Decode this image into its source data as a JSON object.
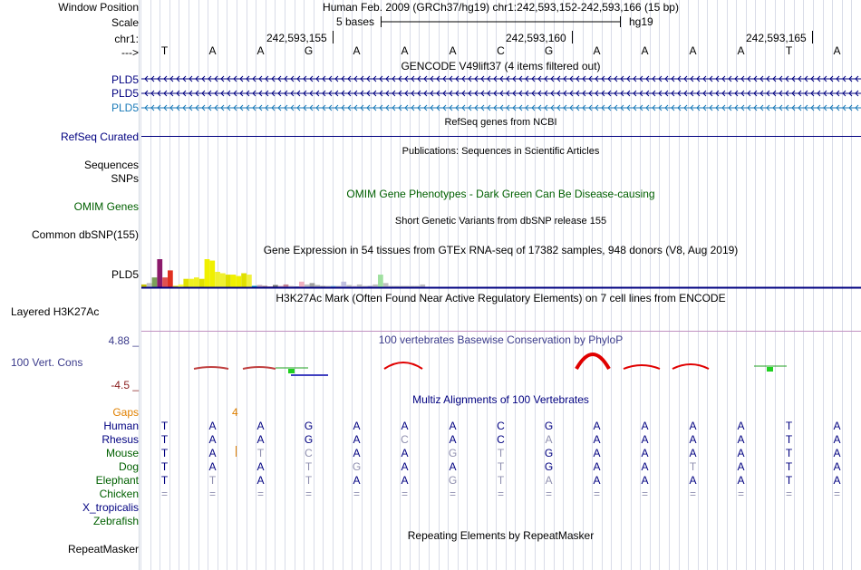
{
  "header": {
    "window_position_label": "Window Position",
    "window_position_value": "Human Feb. 2009 (GRCh37/hg19)   chr1:242,593,152-242,593,166 (15 bp)",
    "scale_label": "Scale",
    "scale_value": "5 bases",
    "scale_assembly": "hg19",
    "chrom_label": "chr1:",
    "arrow_label": "--->",
    "positions": [
      "242,593,155",
      "242,593,160",
      "242,593,165"
    ]
  },
  "sequence": [
    "T",
    "A",
    "A",
    "G",
    "A",
    "A",
    "A",
    "C",
    "G",
    "A",
    "A",
    "A",
    "A",
    "T",
    "A"
  ],
  "tracks": {
    "gencode": {
      "title": "GENCODE V49lift37 (4 items filtered out)",
      "items": [
        "PLD5",
        "PLD5",
        "PLD5"
      ]
    },
    "refseq": {
      "title": "RefSeq genes from NCBI",
      "label": "RefSeq Curated"
    },
    "publications": {
      "title": "Publications: Sequences in Scientific Articles",
      "labels": [
        "Sequences",
        "SNPs"
      ]
    },
    "omim": {
      "title": "OMIM Gene Phenotypes - Dark Green Can Be Disease-causing",
      "label": "OMIM Genes"
    },
    "dbsnp": {
      "title": "Short Genetic Variants from dbSNP release 155",
      "label": "Common dbSNP(155)"
    },
    "gtex": {
      "title": "Gene Expression in 54 tissues from GTEx RNA-seq of 17382 samples, 948 donors (V8, Aug 2019)",
      "label": "PLD5",
      "bar_values": [
        0.1,
        0.15,
        0.35,
        1.0,
        0.35,
        0.6,
        0.05,
        0.1,
        0.3,
        0.3,
        0.35,
        0.3,
        1.0,
        0.95,
        0.55,
        0.5,
        0.45,
        0.45,
        0.4,
        0.5,
        0.45,
        0.05,
        0.08,
        0.05,
        0.03,
        0.08,
        0.05,
        0.1,
        0.05,
        0.02,
        0.2,
        0.1,
        0.15,
        0.08,
        0.05,
        0.05,
        0.05,
        0.05,
        0.2,
        0.08,
        0.05,
        0.1,
        0.05,
        0.05,
        0.1,
        0.45,
        0.15,
        0.05,
        0.05,
        0.05,
        0.05,
        0.05,
        0.05,
        0.1
      ],
      "bar_colors": [
        "#c4c000",
        "#c0c0c0",
        "#7aa05a",
        "#8b1a6b",
        "#e05050",
        "#e03020",
        "#e0d000",
        "#ffff40",
        "#e0e000",
        "#f0f020",
        "#f0f020",
        "#e0e000",
        "#f0f000",
        "#f0f000",
        "#f0f030",
        "#f0f030",
        "#e0e000",
        "#f0f000",
        "#f0f000",
        "#e0e000",
        "#f0f040",
        "#00a0c0",
        "#c0a0b0",
        "#a08080",
        "#c09090",
        "#707070",
        "#d0a0b0",
        "#c08090",
        "#d0c0c0",
        "#a0a0a0",
        "#f0b0c0",
        "#c0c0c0",
        "#a0a0a0",
        "#b0b0b0",
        "#a0a0a0",
        "#c0c0c0",
        "#80c0e0",
        "#c0c0c0",
        "#c0c0e0",
        "#c0c0c0",
        "#d0c0d0",
        "#c0c0c0",
        "#c0c0c0",
        "#a0a0c0",
        "#c0c0c0",
        "#a0e0a0",
        "#c0c0c0",
        "#c0c0c0",
        "#c0c0c0",
        "#c0c0c0",
        "#c0c0c0",
        "#c0c0c0",
        "#c0c0c0",
        "#c0c0c0"
      ]
    },
    "h3k27ac": {
      "title": "H3K27Ac Mark (Often Found Near Active Regulatory Elements) on 7 cell lines from ENCODE",
      "label": "Layered H3K27Ac"
    },
    "phylop": {
      "title": "100 vertebrates Basewise Conservation by PhyloP",
      "label": "100 Vert. Cons",
      "max_label": "4.88 _",
      "min_label": "-4.5 _"
    },
    "multiz": {
      "title": "Multiz Alignments of 100 Vertebrates",
      "gaps_label": "Gaps",
      "gap_count": "4",
      "species": [
        {
          "name": "Human",
          "color": "#000080",
          "bases": [
            "T",
            "A",
            "A",
            "G",
            "A",
            "A",
            "A",
            "C",
            "G",
            "A",
            "A",
            "A",
            "A",
            "T",
            "A"
          ],
          "gray": []
        },
        {
          "name": "Rhesus",
          "color": "#000080",
          "bases": [
            "T",
            "A",
            "A",
            "G",
            "A",
            "C",
            "A",
            "C",
            "A",
            "A",
            "A",
            "A",
            "A",
            "T",
            "A"
          ],
          "gray": [
            5,
            8
          ]
        },
        {
          "name": "Mouse",
          "color": "#006000",
          "bases": [
            "T",
            "A",
            "T",
            "C",
            "A",
            "A",
            "G",
            "T",
            "G",
            "A",
            "A",
            "A",
            "A",
            "T",
            "A"
          ],
          "gray": [
            2,
            3,
            6,
            7
          ]
        },
        {
          "name": "Dog",
          "color": "#006000",
          "bases": [
            "T",
            "A",
            "A",
            "T",
            "G",
            "A",
            "A",
            "T",
            "G",
            "A",
            "A",
            "T",
            "A",
            "T",
            "A"
          ],
          "gray": [
            3,
            4,
            7,
            11
          ]
        },
        {
          "name": "Elephant",
          "color": "#006000",
          "bases": [
            "T",
            "T",
            "A",
            "T",
            "A",
            "A",
            "G",
            "T",
            "A",
            "A",
            "A",
            "A",
            "A",
            "T",
            "A"
          ],
          "gray": [
            1,
            3,
            6,
            7,
            8
          ]
        },
        {
          "name": "Chicken",
          "color": "#006000",
          "bases": [
            "=",
            "=",
            "=",
            "=",
            "=",
            "=",
            "=",
            "=",
            "=",
            "=",
            "=",
            "=",
            "=",
            "=",
            "="
          ],
          "gray": [
            0,
            1,
            2,
            3,
            4,
            5,
            6,
            7,
            8,
            9,
            10,
            11,
            12,
            13,
            14
          ]
        },
        {
          "name": "X_tropicalis",
          "color": "#000080",
          "bases": [],
          "gray": []
        },
        {
          "name": "Zebrafish",
          "color": "#006000",
          "bases": [],
          "gray": []
        }
      ]
    },
    "repeatmasker": {
      "title": "Repeating Elements by RepeatMasker",
      "label": "RepeatMasker"
    }
  },
  "colors": {
    "navy": "#000080",
    "dark_green": "#006000",
    "omim_green": "#006000",
    "phylop_blue": "#3c3c8c",
    "phylop_red": "#8b2020",
    "gaps_orange": "#e08000",
    "gencode_light": "#1a7ab8"
  }
}
